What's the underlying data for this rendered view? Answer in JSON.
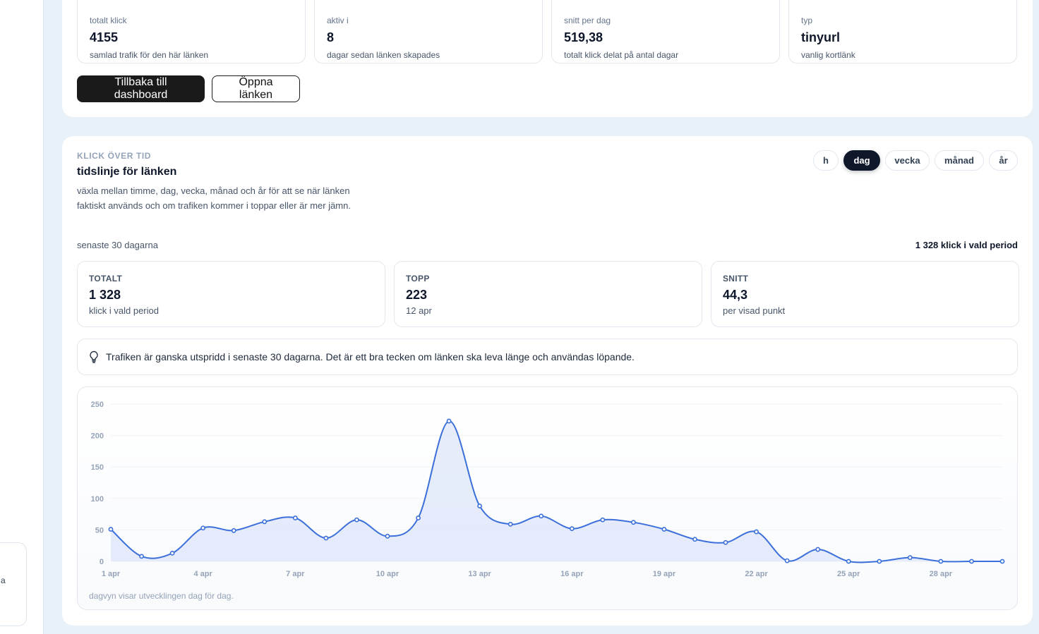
{
  "sidebar": {
    "card_text": "a"
  },
  "stats": [
    {
      "label": "totalt klick",
      "value": "4155",
      "desc": "samlad trafik för den här länken"
    },
    {
      "label": "aktiv i",
      "value": "8",
      "desc": "dagar sedan länken skapades"
    },
    {
      "label": "snitt per dag",
      "value": "519,38",
      "desc": "totalt klick delat på antal dagar"
    },
    {
      "label": "typ",
      "value": "tinyurl",
      "desc": "vanlig kortlänk"
    }
  ],
  "actions": {
    "back_label": "Tillbaka till dashboard",
    "open_label": "Öppna länken"
  },
  "chart_section": {
    "eyebrow": "KLICK ÖVER TID",
    "title": "tidslinje för länken",
    "description": "växla mellan timme, dag, vecka, månad och år för att se när länken faktiskt används och om trafiken kommer i toppar eller är mer jämn.",
    "tabs": [
      {
        "label": "h",
        "active": false
      },
      {
        "label": "dag",
        "active": true
      },
      {
        "label": "vecka",
        "active": false
      },
      {
        "label": "månad",
        "active": false
      },
      {
        "label": "år",
        "active": false
      }
    ],
    "period_label": "senaste 30 dagarna",
    "period_total": "1 328 klick i vald period",
    "summary": [
      {
        "label": "TOTALT",
        "value": "1 328",
        "desc": "klick i vald period"
      },
      {
        "label": "TOPP",
        "value": "223",
        "desc": "12 apr"
      },
      {
        "label": "SNITT",
        "value": "44,3",
        "desc": "per visad punkt"
      }
    ],
    "insight": {
      "icon": "lightbulb-icon",
      "text": "Trafiken är ganska utspridd i senaste 30 dagarna. Det är ett bra tecken om länken ska leva länge och användas löpande."
    },
    "footnote": "dagvyn visar utvecklingen dag för dag."
  },
  "colors": {
    "line": "#3b6fd9",
    "fill": "#dde6f8",
    "grid": "#eef2f6",
    "accent_dark": "#0f172a"
  },
  "chart_data": {
    "type": "area",
    "x": [
      "1 apr",
      "2 apr",
      "3 apr",
      "4 apr",
      "5 apr",
      "6 apr",
      "7 apr",
      "8 apr",
      "9 apr",
      "10 apr",
      "11 apr",
      "12 apr",
      "13 apr",
      "14 apr",
      "15 apr",
      "16 apr",
      "17 apr",
      "18 apr",
      "19 apr",
      "20 apr",
      "21 apr",
      "22 apr",
      "23 apr",
      "24 apr",
      "25 apr",
      "26 apr",
      "27 apr",
      "28 apr",
      "29 apr",
      "30 apr"
    ],
    "x_tick_labels": [
      "1 apr",
      "4 apr",
      "7 apr",
      "10 apr",
      "13 apr",
      "16 apr",
      "19 apr",
      "22 apr",
      "25 apr",
      "28 apr"
    ],
    "series": [
      {
        "values": [
          51,
          8,
          13,
          53,
          49,
          63,
          69,
          37,
          66,
          40,
          69,
          223,
          88,
          59,
          72,
          52,
          66,
          62,
          51,
          35,
          30,
          47,
          1,
          19,
          0,
          0,
          6,
          0,
          0,
          0
        ]
      }
    ],
    "ylim": [
      0,
      250
    ],
    "y_ticks": [
      0,
      50,
      100,
      150,
      200,
      250
    ],
    "grid": true,
    "legend": "none",
    "xlabel": "",
    "ylabel": ""
  }
}
